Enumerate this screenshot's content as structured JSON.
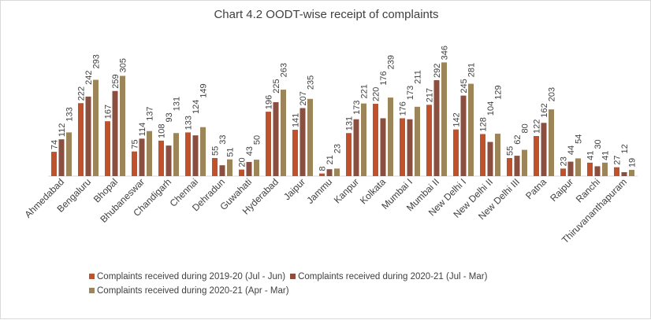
{
  "chart_data": {
    "type": "bar",
    "title": "Chart 4.2 OODT-wise receipt of complaints",
    "xlabel": "",
    "ylabel": "",
    "ylim": [
      0,
      360
    ],
    "grid": false,
    "legend_position": "bottom",
    "categories": [
      "Ahmedabad",
      "Bengaluru",
      "Bhopal",
      "Bhubaneswar",
      "Chandigarh",
      "Chennai",
      "Dehradun",
      "Guwahati",
      "Hyderabad",
      "Jaipur",
      "Jammu",
      "Kanpur",
      "Kolkata",
      "Mumbai I",
      "Mumbai II",
      "New Delhi I",
      "New Delhi II",
      "New Delhi III",
      "Patna",
      "Raipur",
      "Ranchi",
      "Thiruvananthapuram"
    ],
    "series": [
      {
        "name": "Complaints received during 2019-20 (Jul - Jun)",
        "color": "#c0522b",
        "values": [
          74,
          222,
          167,
          75,
          108,
          133,
          55,
          20,
          196,
          141,
          8,
          131,
          220,
          176,
          217,
          142,
          128,
          55,
          122,
          23,
          41,
          27
        ]
      },
      {
        "name": "Complaints received during 2020-21 (Jul - Mar)",
        "color": "#8a4f3f",
        "values": [
          112,
          242,
          259,
          114,
          93,
          124,
          33,
          43,
          225,
          207,
          21,
          173,
          176,
          173,
          292,
          245,
          104,
          62,
          162,
          44,
          30,
          12
        ]
      },
      {
        "name": "Complaints received during 2020-21 (Apr - Mar)",
        "color": "#9c8558",
        "values": [
          133,
          293,
          305,
          137,
          131,
          149,
          51,
          50,
          263,
          235,
          23,
          221,
          239,
          211,
          346,
          281,
          129,
          80,
          203,
          54,
          41,
          19
        ]
      }
    ]
  }
}
